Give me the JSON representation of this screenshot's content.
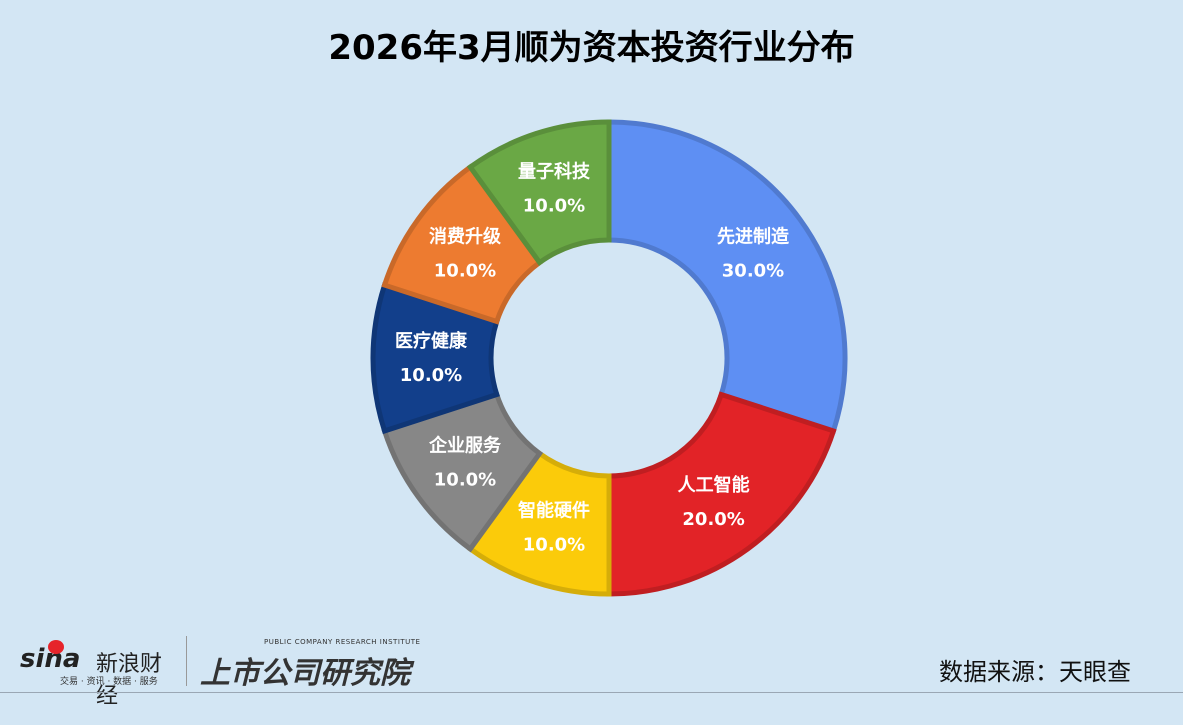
{
  "title": "2026年3月顺为资本投资行业分布",
  "source": "数据来源：天眼查",
  "logos": {
    "sina": "sina新浪财经",
    "sina_sub": "交易 · 资讯 · 数据 · 服务",
    "institute": "上市公司研究院",
    "institute_en": "PUBLIC COMPANY RESEARCH INSTITUTE"
  },
  "chart_data": {
    "type": "pie",
    "donut": true,
    "title": "2026年3月顺为资本投资行业分布",
    "categories": [
      "先进制造",
      "人工智能",
      "智能硬件",
      "企业服务",
      "医疗健康",
      "消费升级",
      "量子科技"
    ],
    "values": [
      30.0,
      20.0,
      10.0,
      10.0,
      10.0,
      10.0,
      10.0
    ],
    "labels": [
      "30.0%",
      "20.0%",
      "10.0%",
      "10.0%",
      "10.0%",
      "10.0%",
      "10.0%"
    ],
    "colors": [
      "#5e8ff3",
      "#e22327",
      "#fbcb0a",
      "#878787",
      "#123f8b",
      "#ed7b30",
      "#6aa845"
    ],
    "legend": "none"
  }
}
